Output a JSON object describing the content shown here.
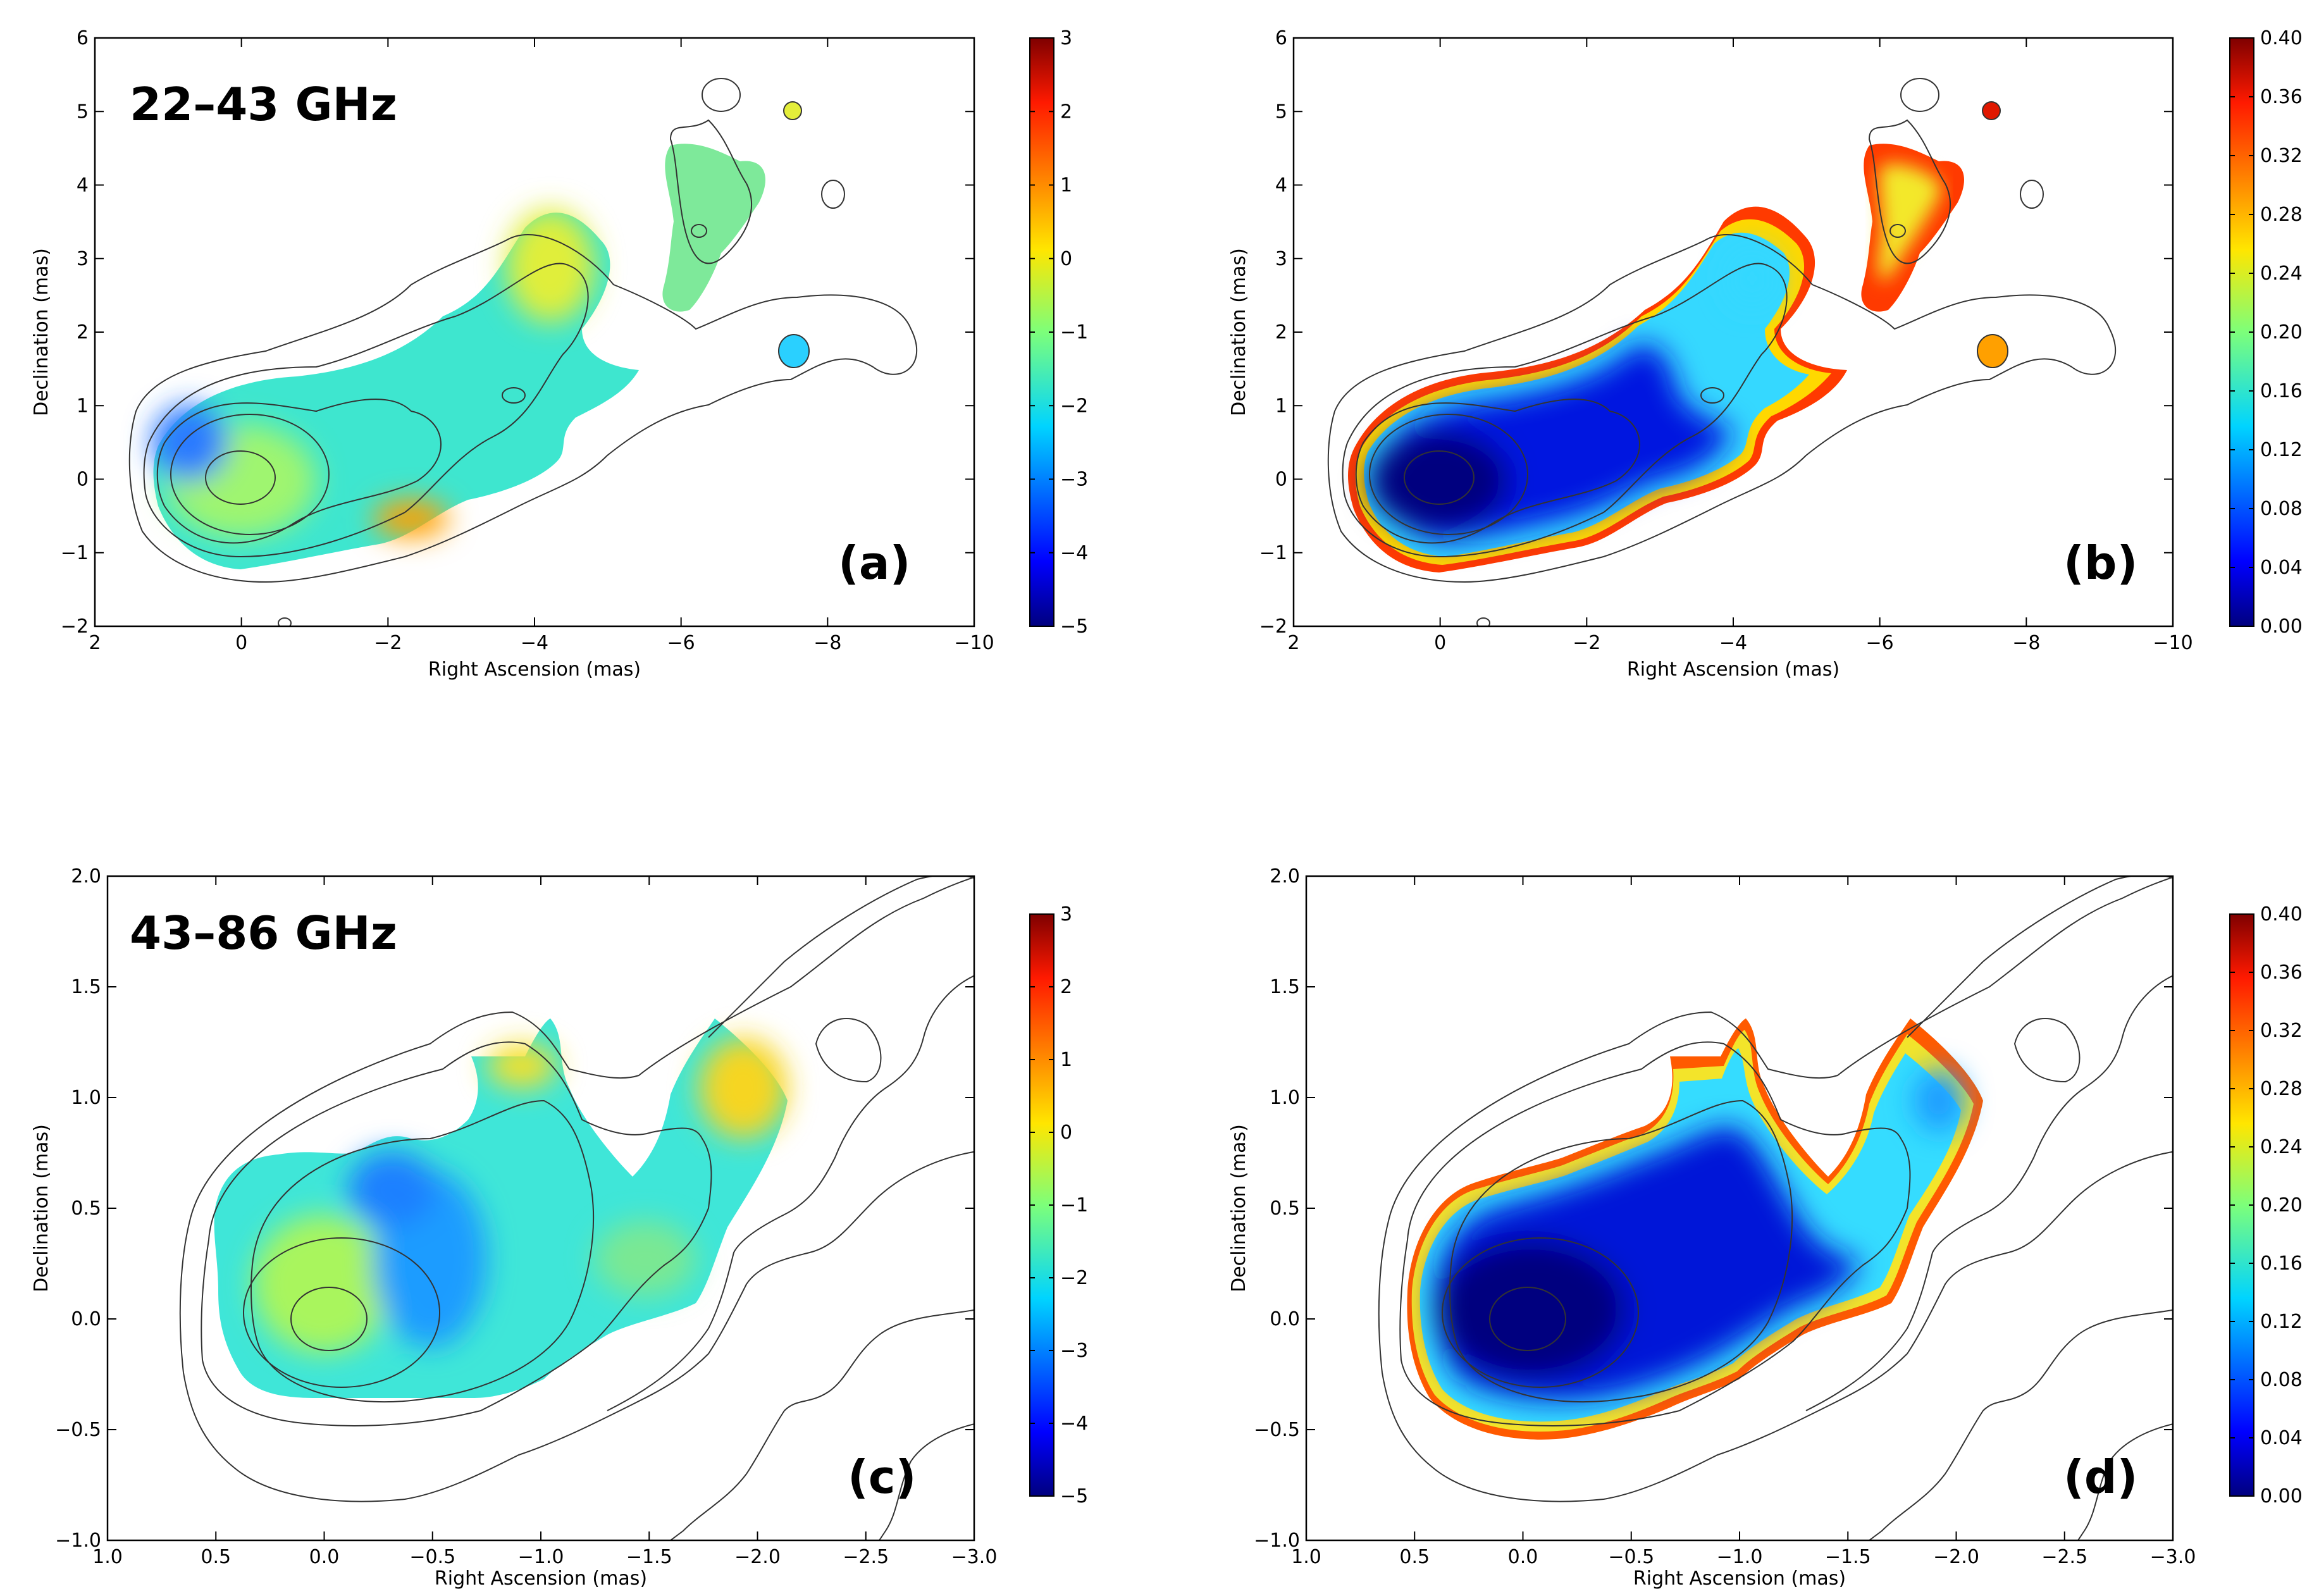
{
  "chart_data": [
    {
      "type": "heatmap",
      "panel_label": "(a)",
      "band_label": "22–43 GHz",
      "xlabel": "Right Ascension (mas)",
      "ylabel": "Declination (mas)",
      "xlim": [
        2,
        -10
      ],
      "ylim": [
        -2,
        6
      ],
      "xticks": [
        2,
        0,
        -2,
        -4,
        -6,
        -8,
        -10
      ],
      "xtick_labels": [
        "2",
        "0",
        "−2",
        "−4",
        "−6",
        "−8",
        "−10"
      ],
      "yticks": [
        -2,
        -1,
        0,
        1,
        2,
        3,
        4,
        5,
        6
      ],
      "ytick_labels": [
        "−2",
        "−1",
        "0",
        "1",
        "2",
        "3",
        "4",
        "5",
        "6"
      ],
      "colorbar": {
        "colormap": "jet",
        "range": [
          -5,
          3
        ],
        "ticks": [
          3,
          2,
          1,
          0,
          -1,
          -2,
          -3,
          -4,
          -5
        ],
        "tick_labels": [
          "3",
          "2",
          "1",
          "0",
          "−1",
          "−2",
          "−3",
          "−4",
          "−5"
        ]
      },
      "spectral_index_map": [
        {
          "ra": 0.0,
          "dec": 0.0,
          "value": -1.2
        },
        {
          "ra": -1.5,
          "dec": 0.7,
          "value": -2.0
        },
        {
          "ra": -3.0,
          "dec": 1.2,
          "value": -1.6
        },
        {
          "ra": -4.2,
          "dec": 2.8,
          "value": -0.6
        },
        {
          "ra": -6.2,
          "dec": 3.4,
          "value": -1.3
        },
        {
          "ra": -7.5,
          "dec": 5.0,
          "value": 0.2
        },
        {
          "ra": -7.5,
          "dec": 1.8,
          "value": -3.0
        }
      ]
    },
    {
      "type": "heatmap",
      "panel_label": "(b)",
      "xlabel": "Right Ascension (mas)",
      "ylabel": "Declination (mas)",
      "xlim": [
        2,
        -10
      ],
      "ylim": [
        -2,
        6
      ],
      "xticks": [
        2,
        0,
        -2,
        -4,
        -6,
        -8,
        -10
      ],
      "xtick_labels": [
        "2",
        "0",
        "−2",
        "−4",
        "−6",
        "−8",
        "−10"
      ],
      "yticks": [
        -2,
        -1,
        0,
        1,
        2,
        3,
        4,
        5,
        6
      ],
      "ytick_labels": [
        "−2",
        "−1",
        "0",
        "1",
        "2",
        "3",
        "4",
        "5",
        "6"
      ],
      "colorbar": {
        "colormap": "jet",
        "range": [
          0.0,
          0.4
        ],
        "ticks": [
          0.4,
          0.36,
          0.32,
          0.28,
          0.24,
          0.2,
          0.16,
          0.12,
          0.08,
          0.04,
          0.0
        ],
        "tick_labels": [
          "0.40",
          "0.36",
          "0.32",
          "0.28",
          "0.24",
          "0.20",
          "0.16",
          "0.12",
          "0.08",
          "0.04",
          "0.00"
        ]
      },
      "uncertainty_map": [
        {
          "ra": 0.0,
          "dec": 0.0,
          "value": 0.0
        },
        {
          "ra": -2.5,
          "dec": 0.8,
          "value": 0.06
        },
        {
          "ra": -4.2,
          "dec": 2.6,
          "value": 0.15
        },
        {
          "ra": -6.2,
          "dec": 3.4,
          "value": 0.3
        },
        {
          "ra": -7.5,
          "dec": 5.0,
          "value": 0.38
        }
      ]
    },
    {
      "type": "heatmap",
      "panel_label": "(c)",
      "band_label": "43–86 GHz",
      "xlabel": "Right Ascension (mas)",
      "ylabel": "Declination (mas)",
      "xlim": [
        1.0,
        -3.0
      ],
      "ylim": [
        -1.0,
        2.0
      ],
      "xticks": [
        1.0,
        0.5,
        0.0,
        -0.5,
        -1.0,
        -1.5,
        -2.0,
        -2.5,
        -3.0
      ],
      "xtick_labels": [
        "1.0",
        "0.5",
        "0.0",
        "−0.5",
        "−1.0",
        "−1.5",
        "−2.0",
        "−2.5",
        "−3.0"
      ],
      "yticks": [
        -1.0,
        -0.5,
        0.0,
        0.5,
        1.0,
        1.5,
        2.0
      ],
      "ytick_labels": [
        "−1.0",
        "−0.5",
        "0.0",
        "0.5",
        "1.0",
        "1.5",
        "2.0"
      ],
      "colorbar": {
        "colormap": "jet",
        "range": [
          -5,
          3
        ],
        "ticks": [
          3,
          2,
          1,
          0,
          -1,
          -2,
          -3,
          -4,
          -5
        ],
        "tick_labels": [
          "3",
          "2",
          "1",
          "0",
          "−1",
          "−2",
          "−3",
          "−4",
          "−5"
        ]
      },
      "spectral_index_map": [
        {
          "ra": 0.0,
          "dec": 0.0,
          "value": -1.0
        },
        {
          "ra": -0.6,
          "dec": 0.2,
          "value": -2.6
        },
        {
          "ra": -1.2,
          "dec": 0.4,
          "value": -1.9
        },
        {
          "ra": -1.85,
          "dec": 1.1,
          "value": 0.3
        },
        {
          "ra": -1.0,
          "dec": 1.15,
          "value": -0.4
        }
      ]
    },
    {
      "type": "heatmap",
      "panel_label": "(d)",
      "xlabel": "Right Ascension (mas)",
      "ylabel": "Declination (mas)",
      "xlim": [
        1.0,
        -3.0
      ],
      "ylim": [
        -1.0,
        2.0
      ],
      "xticks": [
        1.0,
        0.5,
        0.0,
        -0.5,
        -1.0,
        -1.5,
        -2.0,
        -2.5,
        -3.0
      ],
      "xtick_labels": [
        "1.0",
        "0.5",
        "0.0",
        "−0.5",
        "−1.0",
        "−1.5",
        "−2.0",
        "−2.5",
        "−3.0"
      ],
      "yticks": [
        -1.0,
        -0.5,
        0.0,
        0.5,
        1.0,
        1.5,
        2.0
      ],
      "ytick_labels": [
        "−1.0",
        "−0.5",
        "0.0",
        "0.5",
        "1.0",
        "1.5",
        "2.0"
      ],
      "colorbar": {
        "colormap": "jet",
        "range": [
          0.0,
          0.4
        ],
        "ticks": [
          0.4,
          0.36,
          0.32,
          0.28,
          0.24,
          0.2,
          0.16,
          0.12,
          0.08,
          0.04,
          0.0
        ],
        "tick_labels": [
          "0.40",
          "0.36",
          "0.32",
          "0.28",
          "0.24",
          "0.20",
          "0.16",
          "0.12",
          "0.08",
          "0.04",
          "0.00"
        ]
      },
      "uncertainty_map": [
        {
          "ra": 0.0,
          "dec": 0.0,
          "value": 0.0
        },
        {
          "ra": -0.8,
          "dec": 0.3,
          "value": 0.04
        },
        {
          "ra": -1.85,
          "dec": 1.0,
          "value": 0.1
        },
        {
          "ra": -1.0,
          "dec": 1.15,
          "value": 0.2
        }
      ]
    }
  ]
}
